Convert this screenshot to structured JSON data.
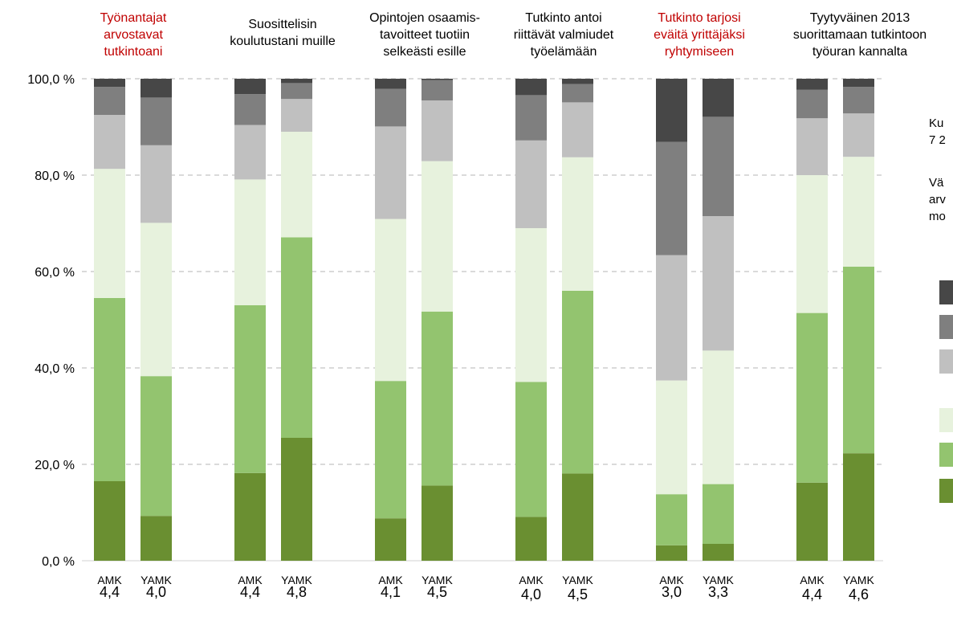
{
  "chart_data": {
    "type": "bar",
    "stacked": true,
    "orientation": "vertical",
    "ylim": [
      0,
      100
    ],
    "y_ticks": [
      "0,0 %",
      "20,0 %",
      "40,0 %",
      "60,0 %",
      "80,0 %",
      "100,0 %"
    ],
    "y_tick_values": [
      0,
      20,
      40,
      60,
      80,
      100
    ],
    "grid": "dashed horizontal",
    "categories": [
      "AMK",
      "YAMK"
    ],
    "segment_colors": [
      "#6a8f31",
      "#93c46f",
      "#e7f2dd",
      "#c0c0c0",
      "#7f7f7f",
      "#474747"
    ],
    "groups": [
      {
        "title_lines": [
          "Työnantajat",
          "arvostavat",
          "tutkintoani"
        ],
        "title_color": "#c00000",
        "bars": [
          {
            "label": "AMK",
            "mean": "4,4",
            "values": [
              16.5,
              38.0,
              26.8,
              11.2,
              5.8,
              1.7
            ]
          },
          {
            "label": "YAMK",
            "mean": "4,0",
            "values": [
              9.3,
              29.0,
              31.8,
              16.1,
              9.9,
              3.9
            ]
          }
        ]
      },
      {
        "title_lines": [
          "Suosittelisin",
          "koulutustani muille"
        ],
        "title_color": "#000000",
        "bars": [
          {
            "label": "AMK",
            "mean": "4,4",
            "values": [
              18.2,
              34.8,
              26.1,
              11.3,
              6.4,
              3.2
            ]
          },
          {
            "label": "YAMK",
            "mean": "4,8",
            "values": [
              25.5,
              41.6,
              21.9,
              6.8,
              3.3,
              0.9
            ]
          }
        ]
      },
      {
        "title_lines": [
          "Opintojen osaamis-",
          "tavoitteet tuotiin",
          "selkeästi esille"
        ],
        "title_color": "#000000",
        "bars": [
          {
            "label": "AMK",
            "mean": "4,1",
            "values": [
              8.8,
              28.5,
              33.6,
              19.2,
              7.8,
              2.1
            ]
          },
          {
            "label": "YAMK",
            "mean": "4,5",
            "values": [
              15.6,
              36.1,
              31.2,
              12.6,
              4.2,
              0.3
            ]
          }
        ]
      },
      {
        "title_lines": [
          "Tutkinto antoi",
          "riittävät valmiudet",
          "työelämään"
        ],
        "title_color": "#000000",
        "bars": [
          {
            "label": "AMK",
            "mean": "4,0",
            "values": [
              9.1,
              28.0,
              31.9,
              18.2,
              9.4,
              3.4
            ]
          },
          {
            "label": "YAMK",
            "mean": "4,5",
            "values": [
              18.1,
              37.9,
              27.7,
              11.4,
              3.8,
              1.1
            ]
          }
        ]
      },
      {
        "title_lines": [
          "Tutkinto tarjosi",
          "eväitä yrittäjäksi",
          "ryhtymiseen"
        ],
        "title_color": "#c00000",
        "bars": [
          {
            "label": "AMK",
            "mean": "3,0",
            "values": [
              3.2,
              10.6,
              23.6,
              26.0,
              23.5,
              13.1
            ]
          },
          {
            "label": "YAMK",
            "mean": "3,3",
            "values": [
              3.5,
              12.4,
              27.7,
              27.9,
              20.6,
              7.9
            ]
          }
        ]
      },
      {
        "title_lines": [
          "Tyytyväinen 2013",
          "suorittamaan tutkintoon",
          "työuran kannalta"
        ],
        "title_color": "#000000",
        "bars": [
          {
            "label": "AMK",
            "mean": "4,4",
            "values": [
              16.2,
              35.2,
              28.6,
              11.8,
              5.9,
              2.3
            ]
          },
          {
            "label": "YAMK",
            "mean": "4,6",
            "values": [
              22.3,
              38.7,
              22.8,
              9.0,
              5.5,
              1.7
            ]
          }
        ]
      }
    ],
    "side_text_lines": [
      "Ku",
      "7 2",
      "",
      "Vä",
      "arv",
      "mo"
    ],
    "legend_placement": "right"
  }
}
